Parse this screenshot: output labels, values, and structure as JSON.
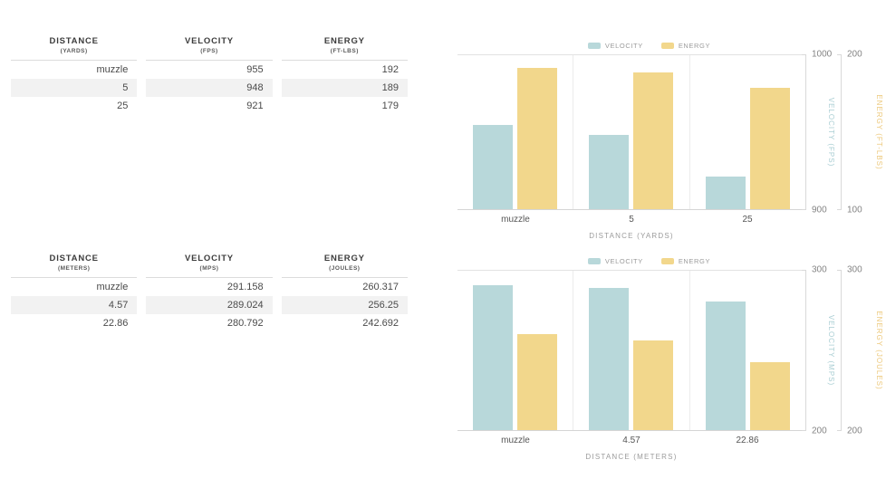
{
  "page": {
    "background": "#ffffff"
  },
  "colors": {
    "velocity_bar": "#b8d8da",
    "energy_bar": "#f2d78c",
    "velocity_axis_text": "#a9ced3",
    "energy_axis_text": "#edc97d",
    "stripe_row": "#f2f2f2"
  },
  "tables": [
    {
      "name": "table-yards",
      "columns": [
        {
          "label": "DISTANCE",
          "unit": "(YARDS)"
        },
        {
          "label": "VELOCITY",
          "unit": "(FPS)"
        },
        {
          "label": "ENERGY",
          "unit": "(FT-LBS)"
        }
      ],
      "rows": [
        [
          "muzzle",
          "955",
          "192"
        ],
        [
          "5",
          "948",
          "189"
        ],
        [
          "25",
          "921",
          "179"
        ]
      ]
    },
    {
      "name": "table-meters",
      "columns": [
        {
          "label": "DISTANCE",
          "unit": "(METERS)"
        },
        {
          "label": "VELOCITY",
          "unit": "(MPS)"
        },
        {
          "label": "ENERGY",
          "unit": "(JOULES)"
        }
      ],
      "rows": [
        [
          "muzzle",
          "291.158",
          "260.317"
        ],
        [
          "4.57",
          "289.024",
          "256.25"
        ],
        [
          "22.86",
          "280.792",
          "242.692"
        ]
      ]
    }
  ],
  "chart_data": [
    {
      "type": "bar",
      "title": "",
      "categories": [
        "muzzle",
        "5",
        "25"
      ],
      "series": [
        {
          "name": "VELOCITY",
          "axis": "velocity",
          "values": [
            955,
            948,
            921
          ],
          "color": "#b8d8da"
        },
        {
          "name": "ENERGY",
          "axis": "energy",
          "values": [
            192,
            189,
            179
          ],
          "color": "#f2d78c"
        }
      ],
      "axes": {
        "velocity": {
          "label": "VELOCITY (FPS)",
          "min": 900,
          "max": 1000,
          "tick_top": "1000",
          "tick_bottom": "900"
        },
        "energy": {
          "label": "ENERGY (FT-LBS)",
          "min": 100,
          "max": 200,
          "tick_top": "200",
          "tick_bottom": "100"
        }
      },
      "xlabel": "DISTANCE (YARDS)",
      "legend": [
        "VELOCITY",
        "ENERGY"
      ],
      "legend_position": "top",
      "grid": true
    },
    {
      "type": "bar",
      "title": "",
      "categories": [
        "muzzle",
        "4.57",
        "22.86"
      ],
      "series": [
        {
          "name": "VELOCITY",
          "axis": "velocity",
          "values": [
            291.158,
            289.024,
            280.792
          ],
          "color": "#b8d8da"
        },
        {
          "name": "ENERGY",
          "axis": "energy",
          "values": [
            260.317,
            256.25,
            242.692
          ],
          "color": "#f2d78c"
        }
      ],
      "axes": {
        "velocity": {
          "label": "VELOCITY (MPS)",
          "min": 200,
          "max": 300,
          "tick_top": "300",
          "tick_bottom": "200"
        },
        "energy": {
          "label": "ENERGY (JOULES)",
          "min": 200,
          "max": 300,
          "tick_top": "300",
          "tick_bottom": "200"
        }
      },
      "xlabel": "DISTANCE (METERS)",
      "legend": [
        "VELOCITY",
        "ENERGY"
      ],
      "legend_position": "top",
      "grid": true
    }
  ]
}
